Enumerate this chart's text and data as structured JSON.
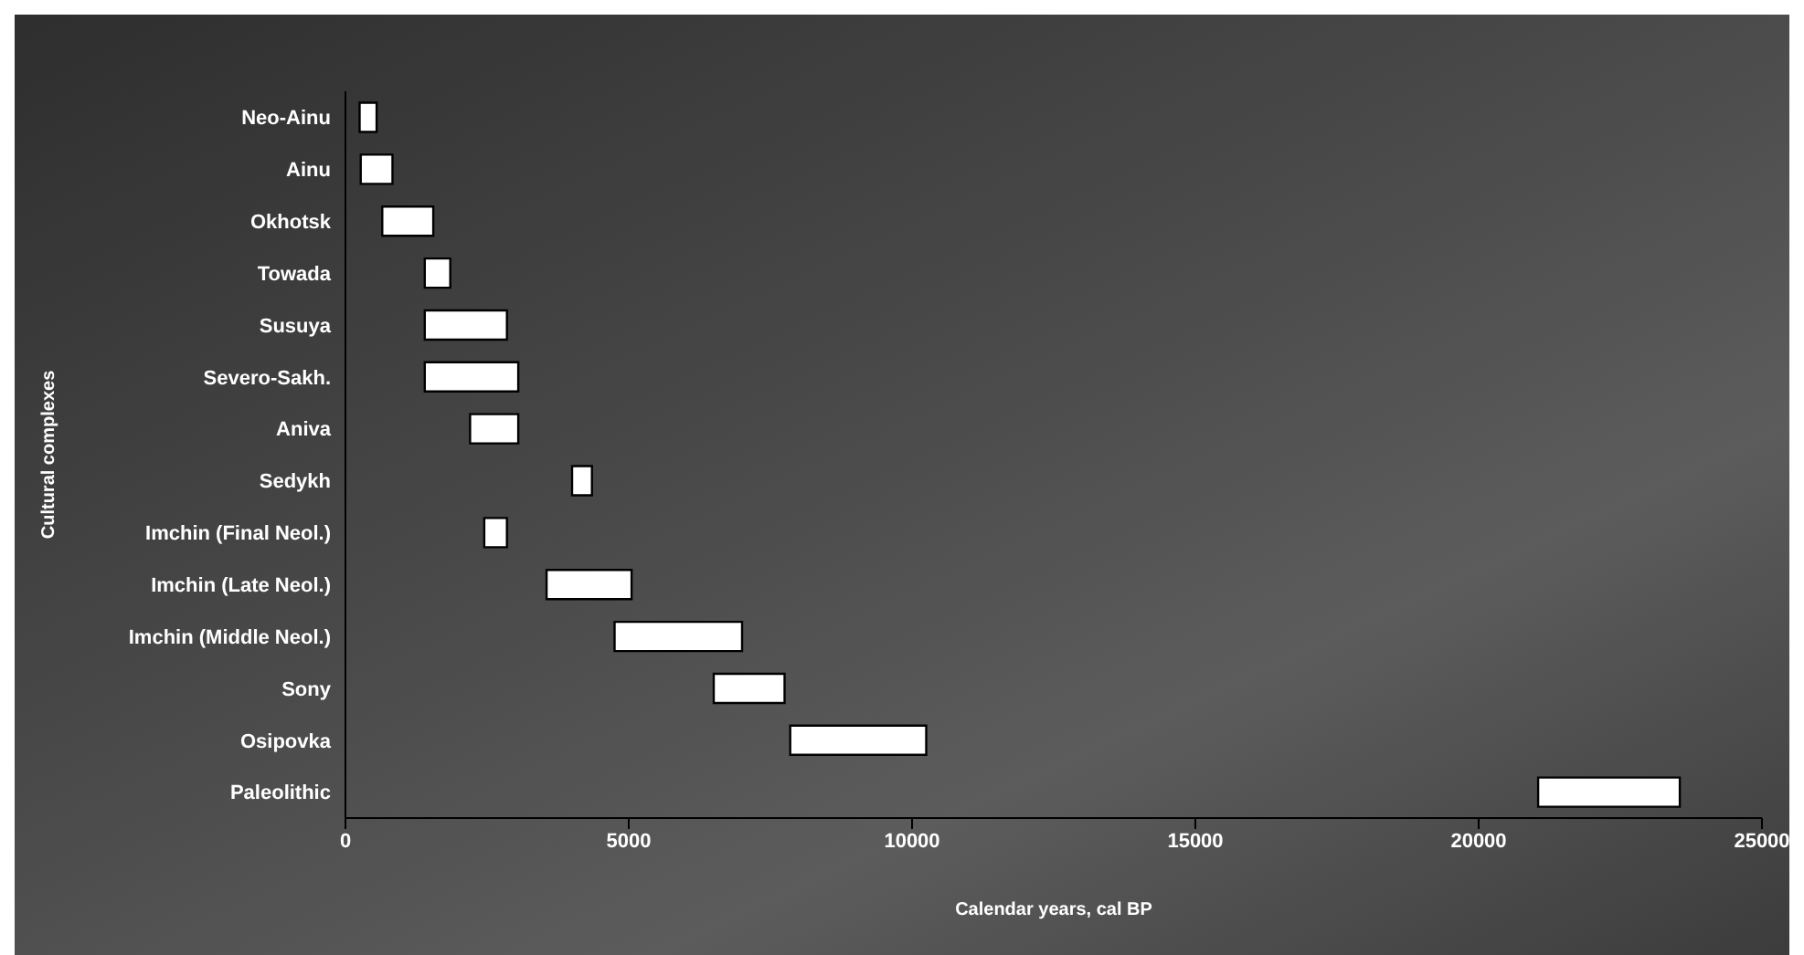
{
  "chart_data": {
    "type": "bar",
    "orientation": "horizontal",
    "xlabel": "Calendar years, cal BP",
    "ylabel": "Cultural complexes",
    "categories": [
      "Neo-Ainu",
      "Ainu",
      "Okhotsk",
      "Towada",
      "Susuya",
      "Severo-Sakh.",
      "Aniva",
      "Sedykh",
      "Imchin (Final Neol.)",
      "Imchin (Late Neol.)",
      "Imchin (Middle Neol.)",
      "Sony",
      "Osipovka",
      "Paleolithic"
    ],
    "base": [
      250,
      270,
      650,
      1400,
      1400,
      1400,
      2200,
      4000,
      2450,
      3550,
      4750,
      6500,
      7850,
      21050
    ],
    "values": [
      300,
      560,
      900,
      450,
      1450,
      1650,
      850,
      350,
      400,
      1500,
      2250,
      1250,
      2400,
      2500
    ],
    "color": "#ffffff",
    "xlim": [
      0,
      25000
    ],
    "xticks": [
      0,
      5000,
      10000,
      15000,
      20000,
      25000
    ],
    "grid": false,
    "legend": false
  }
}
